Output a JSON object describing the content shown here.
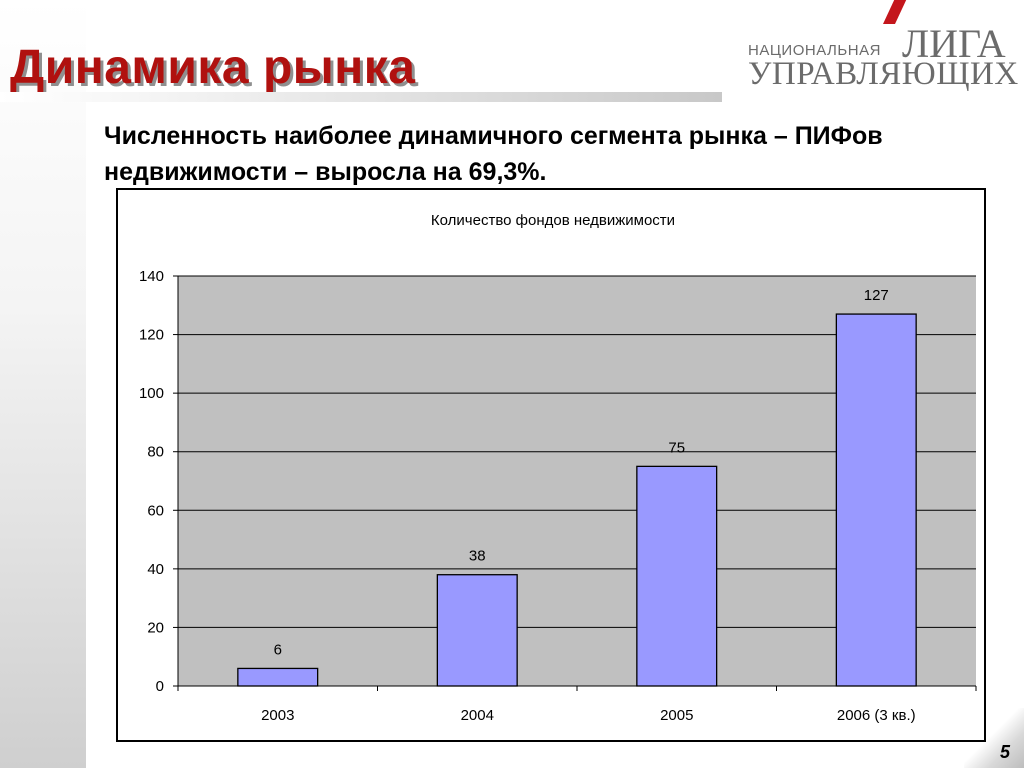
{
  "slide": {
    "title": "Динамика рынка",
    "subtitle": "Численность наиболее динамичного сегмента рынка – ПИФов недвижимости – выросла на 69,3%.",
    "page_number": "5"
  },
  "logo": {
    "line1": "НАЦИОНАЛЬНАЯ",
    "line2": "ЛИГА",
    "line3": "УПРАВЛЯЮЩИХ",
    "accent_color": "#c4161c"
  },
  "colors": {
    "title": "#b0110f",
    "bar_fill": "#9999ff",
    "plot_bg": "#c0c0c0"
  },
  "chart_data": {
    "type": "bar",
    "title": "Количество фондов недвижимости",
    "categories": [
      "2003",
      "2004",
      "2005",
      "2006 (3 кв.)"
    ],
    "values": [
      6,
      38,
      75,
      127
    ],
    "data_labels": [
      "6",
      "38",
      "75",
      "127"
    ],
    "xlabel": "",
    "ylabel": "",
    "ylim": [
      0,
      140
    ],
    "yticks": [
      "0",
      "20",
      "40",
      "60",
      "80",
      "100",
      "120",
      "140"
    ],
    "grid": true,
    "legend": "none"
  }
}
